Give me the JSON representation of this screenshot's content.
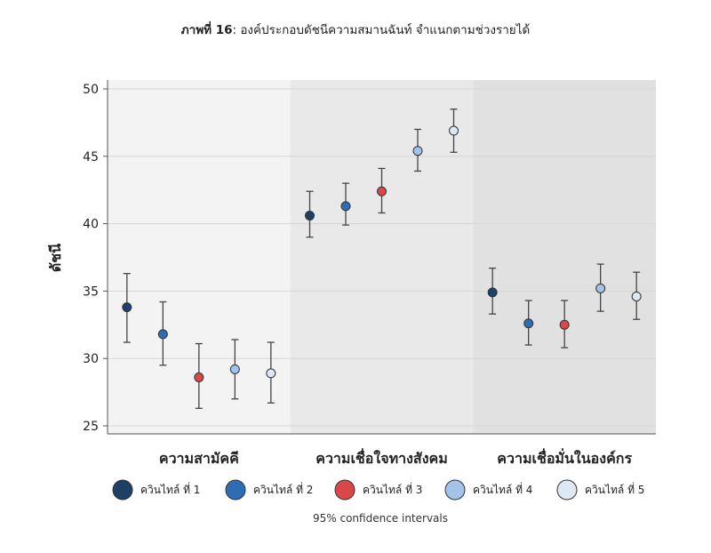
{
  "title": {
    "bold": "ภาพที่ 16",
    "rest": ": องค์ประกอบดัชนีความสมานฉันท์ จำแนกตามช่วงรายได้"
  },
  "chart_data": {
    "type": "scatter",
    "ylabel": "ดัชนี",
    "ylim": [
      25,
      50
    ],
    "yticks": [
      25,
      30,
      35,
      40,
      45,
      50
    ],
    "grid": true,
    "categories": [
      "ความสามัคคี",
      "ความเชื่อใจทางสังคม",
      "ความเชื่อมั่นในองค์กร"
    ],
    "group_backgrounds": [
      "#f3f3f3",
      "#e9e9e9",
      "#e1e1e1"
    ],
    "series": [
      {
        "name": "ควินไทล์ ที่ 1",
        "color": "#1e3f66",
        "values": [
          33.8,
          40.6,
          34.9
        ],
        "ci_low": [
          31.2,
          39.0,
          33.3
        ],
        "ci_high": [
          36.3,
          42.4,
          36.7
        ]
      },
      {
        "name": "ควินไทล์ ที่ 2",
        "color": "#2e6db4",
        "values": [
          31.8,
          41.3,
          32.6
        ],
        "ci_low": [
          29.5,
          39.9,
          31.0
        ],
        "ci_high": [
          34.2,
          43.0,
          34.3
        ]
      },
      {
        "name": "ควินไทล์ ที่ 3",
        "color": "#d94848",
        "values": [
          28.6,
          42.4,
          32.5
        ],
        "ci_low": [
          26.3,
          40.8,
          30.8
        ],
        "ci_high": [
          31.1,
          44.1,
          34.3
        ]
      },
      {
        "name": "ควินไทล์ ที่ 4",
        "color": "#a3c4e8",
        "values": [
          29.2,
          45.4,
          35.2
        ],
        "ci_low": [
          27.0,
          43.9,
          33.5
        ],
        "ci_high": [
          31.4,
          47.0,
          37.0
        ]
      },
      {
        "name": "ควินไทล์ ที่ 5",
        "color": "#dde8f5",
        "values": [
          28.9,
          46.9,
          34.6
        ],
        "ci_low": [
          26.7,
          45.3,
          32.9
        ],
        "ci_high": [
          31.2,
          48.5,
          36.4
        ]
      }
    ],
    "legend_position": "bottom",
    "note": "95% confidence intervals"
  }
}
